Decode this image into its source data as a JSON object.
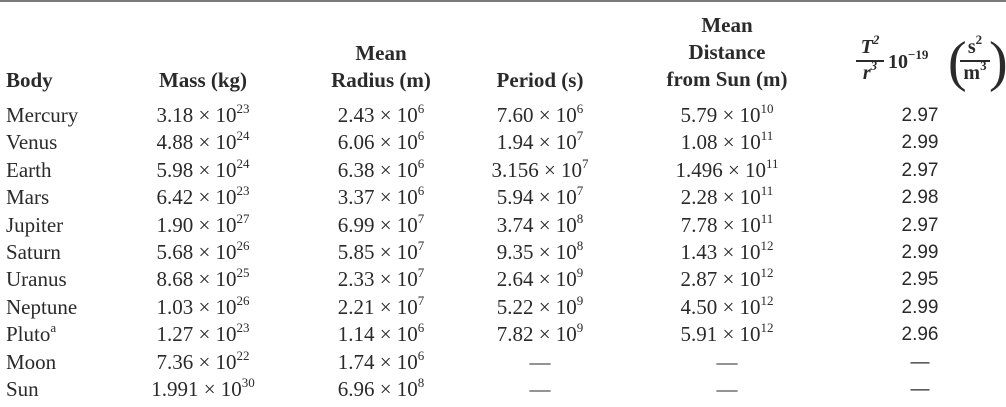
{
  "headers": {
    "body": "Body",
    "mass": "Mass (kg)",
    "radius_1": "Mean",
    "radius_2": "Radius (m)",
    "period": "Period (s)",
    "distance_1": "Mean",
    "distance_2": "Distance",
    "distance_3": "from Sun (m)",
    "ratio_num": "T",
    "ratio_num_exp": "2",
    "ratio_den": "r",
    "ratio_den_exp": "3",
    "ratio_factor": "10",
    "ratio_factor_exp": "−19",
    "ratio_unit_num": "s",
    "ratio_unit_num_exp": "2",
    "ratio_unit_den": "m",
    "ratio_unit_den_exp": "3"
  },
  "rows": [
    {
      "body": "Mercury",
      "mass": "3.18 × 10",
      "mass_exp": "23",
      "radius": "2.43 × 10",
      "radius_exp": "6",
      "period": "7.60 × 10",
      "period_exp": "6",
      "distance": "5.79 × 10",
      "distance_exp": "10",
      "ratio": "2.97"
    },
    {
      "body": "Venus",
      "mass": "4.88 × 10",
      "mass_exp": "24",
      "radius": "6.06 × 10",
      "radius_exp": "6",
      "period": "1.94 × 10",
      "period_exp": "7",
      "distance": "1.08 × 10",
      "distance_exp": "11",
      "ratio": "2.99"
    },
    {
      "body": "Earth",
      "mass": "5.98 × 10",
      "mass_exp": "24",
      "radius": "6.38 × 10",
      "radius_exp": "6",
      "period": "3.156 × 10",
      "period_exp": "7",
      "distance": "1.496 × 10",
      "distance_exp": "11",
      "ratio": "2.97"
    },
    {
      "body": "Mars",
      "mass": "6.42 × 10",
      "mass_exp": "23",
      "radius": "3.37 × 10",
      "radius_exp": "6",
      "period": "5.94 × 10",
      "period_exp": "7",
      "distance": "2.28 × 10",
      "distance_exp": "11",
      "ratio": "2.98"
    },
    {
      "body": "Jupiter",
      "mass": "1.90 × 10",
      "mass_exp": "27",
      "radius": "6.99 × 10",
      "radius_exp": "7",
      "period": "3.74 × 10",
      "period_exp": "8",
      "distance": "7.78 × 10",
      "distance_exp": "11",
      "ratio": "2.97"
    },
    {
      "body": "Saturn",
      "mass": "5.68 × 10",
      "mass_exp": "26",
      "radius": "5.85 × 10",
      "radius_exp": "7",
      "period": "9.35 × 10",
      "period_exp": "8",
      "distance": "1.43 × 10",
      "distance_exp": "12",
      "ratio": "2.99"
    },
    {
      "body": "Uranus",
      "mass": "8.68 × 10",
      "mass_exp": "25",
      "radius": "2.33 × 10",
      "radius_exp": "7",
      "period": "2.64 × 10",
      "period_exp": "9",
      "distance": "2.87 × 10",
      "distance_exp": "12",
      "ratio": "2.95"
    },
    {
      "body": "Neptune",
      "mass": "1.03 × 10",
      "mass_exp": "26",
      "radius": "2.21 × 10",
      "radius_exp": "7",
      "period": "5.22 × 10",
      "period_exp": "9",
      "distance": "4.50 × 10",
      "distance_exp": "12",
      "ratio": "2.99"
    },
    {
      "body": "Pluto",
      "body_sup": "a",
      "mass": "1.27 × 10",
      "mass_exp": "23",
      "radius": "1.14 × 10",
      "radius_exp": "6",
      "period": "7.82 × 10",
      "period_exp": "9",
      "distance": "5.91 × 10",
      "distance_exp": "12",
      "ratio": "2.96"
    },
    {
      "body": "Moon",
      "mass": "7.36 × 10",
      "mass_exp": "22",
      "radius": "1.74 × 10",
      "radius_exp": "6",
      "period": "—",
      "distance": "—",
      "ratio": "—"
    },
    {
      "body": "Sun",
      "mass": "1.991 × 10",
      "mass_exp": "30",
      "radius": "6.96 × 10",
      "radius_exp": "8",
      "period": "—",
      "distance": "—",
      "ratio": "—"
    }
  ]
}
